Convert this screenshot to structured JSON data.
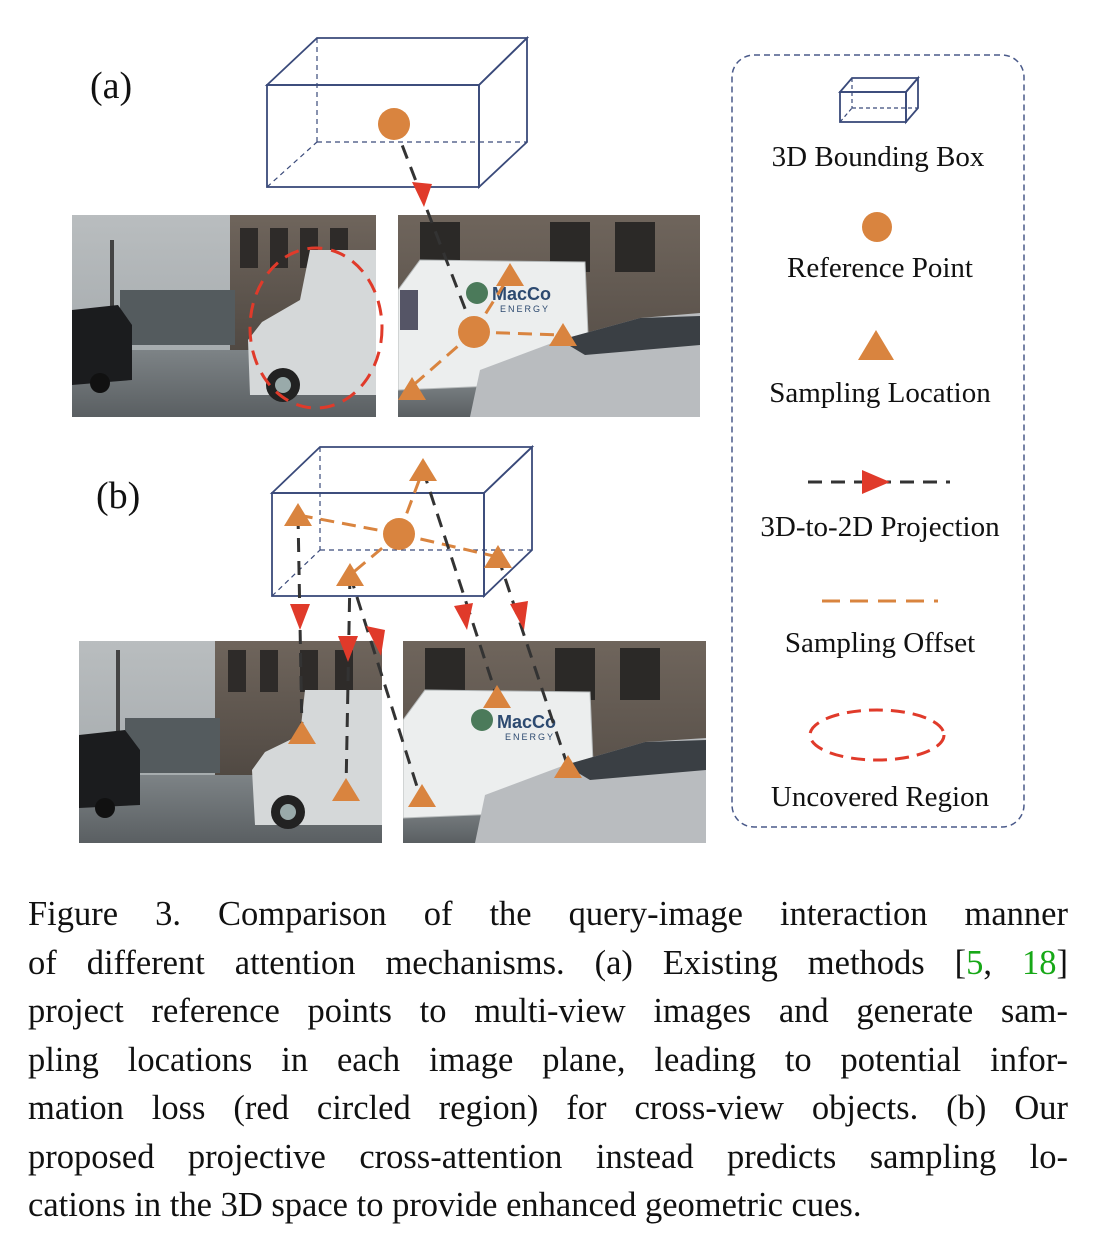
{
  "figure": {
    "panel_a_label": "(a)",
    "panel_b_label": "(b)",
    "truck_logo_text": "MacCo",
    "truck_logo_sub": "ENERGY",
    "legend": {
      "items": [
        {
          "label": "3D Bounding Box",
          "icon": "box-icon"
        },
        {
          "label": "Reference Point",
          "icon": "circle-icon"
        },
        {
          "label": "Sampling Location",
          "icon": "triangle-icon"
        },
        {
          "label": "3D-to-2D Projection",
          "icon": "dashed-arrow-icon"
        },
        {
          "label": "Sampling Offset",
          "icon": "orange-dash-icon"
        },
        {
          "label": "Uncovered Region",
          "icon": "red-ellipse-icon"
        }
      ]
    },
    "colors": {
      "box_stroke": "#3a4a7a",
      "orange": "#d9843f",
      "red": "#e03a2a",
      "dash_dark": "#333333",
      "legend_border": "#4a5a8a"
    }
  },
  "caption": {
    "lines": [
      "Figure 3.  Comparison of the query-image interaction manner",
      "of different attention mechanisms.  (a) Existing methods [",
      "project reference points to multi-view images and generate sam-",
      "pling locations in each image plane, leading to potential infor-",
      "mation loss (red circled region) for cross-view objects.  (b) Our",
      "proposed projective cross-attention instead predicts sampling lo-",
      "cations in the 3D space to provide enhanced geometric cues."
    ],
    "cite_1": "5",
    "cite_sep": ", ",
    "cite_2": "18",
    "cite_close": "]"
  }
}
